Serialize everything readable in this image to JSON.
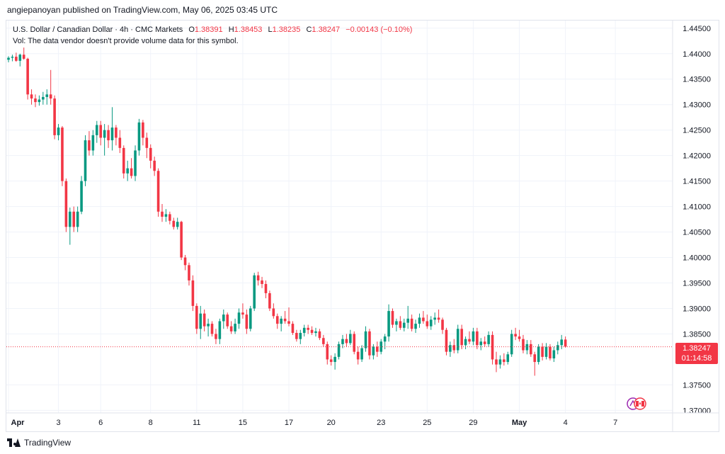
{
  "header": {
    "published_by": "angiepanoyan published on TradingView.com, May 06, 2025 03:45 UTC"
  },
  "legend": {
    "symbol": "U.S. Dollar / Canadian Dollar · 4h · CMC Markets",
    "open_label": "O",
    "open": "1.38391",
    "high_label": "H",
    "high": "1.38453",
    "low_label": "L",
    "low": "1.38235",
    "close_label": "C",
    "close": "1.38247",
    "change": "−0.00143 (−0.10%)",
    "volume_note": "Vol: The data vendor doesn't provide volume data for this symbol."
  },
  "price_tag": {
    "price": "1.38247",
    "countdown": "01:14:58"
  },
  "footer": {
    "brand": "TradingView"
  },
  "colors": {
    "up": "#089981",
    "down": "#f23645",
    "grid": "#f0f3fa",
    "text": "#131722",
    "current_line": "#f23645"
  },
  "chart_data": {
    "type": "candlestick",
    "ylim": [
      1.3695,
      1.4465
    ],
    "y_ticks": [
      "1.44500",
      "1.44000",
      "1.43500",
      "1.43000",
      "1.42500",
      "1.42000",
      "1.41500",
      "1.41000",
      "1.40500",
      "1.40000",
      "1.39500",
      "1.39000",
      "1.38500",
      "1.38247",
      "1.37500",
      "1.37000"
    ],
    "y_tick_values": [
      1.445,
      1.44,
      1.435,
      1.43,
      1.425,
      1.42,
      1.415,
      1.41,
      1.405,
      1.4,
      1.395,
      1.39,
      1.385,
      1.38247,
      1.375,
      1.37
    ],
    "x_ticks": [
      {
        "label": "Apr",
        "index": 0,
        "bold": true
      },
      {
        "label": "3",
        "index": 13
      },
      {
        "label": "6",
        "index": 24
      },
      {
        "label": "8",
        "index": 37
      },
      {
        "label": "11",
        "index": 49
      },
      {
        "label": "15",
        "index": 61
      },
      {
        "label": "17",
        "index": 73
      },
      {
        "label": "20",
        "index": 84
      },
      {
        "label": "23",
        "index": 97
      },
      {
        "label": "25",
        "index": 109
      },
      {
        "label": "29",
        "index": 121
      },
      {
        "label": "May",
        "index": 133,
        "bold": true
      },
      {
        "label": "4",
        "index": 145
      },
      {
        "label": "7",
        "index": 158
      }
    ],
    "current_price": 1.38247,
    "candles": [
      [
        1.4388,
        1.4395,
        1.4383,
        1.4392
      ],
      [
        1.4392,
        1.4398,
        1.4385,
        1.4394
      ],
      [
        1.4394,
        1.4402,
        1.4384,
        1.4386
      ],
      [
        1.4386,
        1.44,
        1.4375,
        1.4398
      ],
      [
        1.4398,
        1.4412,
        1.4388,
        1.439
      ],
      [
        1.439,
        1.4392,
        1.431,
        1.432
      ],
      [
        1.432,
        1.433,
        1.43,
        1.4312
      ],
      [
        1.4312,
        1.432,
        1.4295,
        1.4305
      ],
      [
        1.4305,
        1.4318,
        1.4298,
        1.431
      ],
      [
        1.431,
        1.4325,
        1.43,
        1.4315
      ],
      [
        1.4315,
        1.433,
        1.43,
        1.432
      ],
      [
        1.432,
        1.4368,
        1.43,
        1.4312
      ],
      [
        1.4312,
        1.4318,
        1.4232,
        1.424
      ],
      [
        1.424,
        1.4262,
        1.423,
        1.4255
      ],
      [
        1.4255,
        1.4258,
        1.414,
        1.415
      ],
      [
        1.415,
        1.4155,
        1.405,
        1.406
      ],
      [
        1.406,
        1.4098,
        1.4025,
        1.409
      ],
      [
        1.409,
        1.41,
        1.405,
        1.406
      ],
      [
        1.406,
        1.41,
        1.405,
        1.409
      ],
      [
        1.409,
        1.416,
        1.4085,
        1.415
      ],
      [
        1.415,
        1.424,
        1.414,
        1.423
      ],
      [
        1.423,
        1.4248,
        1.42,
        1.421
      ],
      [
        1.421,
        1.425,
        1.42,
        1.424
      ],
      [
        1.424,
        1.4268,
        1.4225,
        1.426
      ],
      [
        1.426,
        1.4268,
        1.422,
        1.4235
      ],
      [
        1.4235,
        1.4262,
        1.42,
        1.425
      ],
      [
        1.425,
        1.426,
        1.4215,
        1.423
      ],
      [
        1.423,
        1.4295,
        1.421,
        1.4255
      ],
      [
        1.4255,
        1.426,
        1.422,
        1.4235
      ],
      [
        1.4235,
        1.425,
        1.4205,
        1.4215
      ],
      [
        1.4215,
        1.422,
        1.4155,
        1.4165
      ],
      [
        1.4165,
        1.419,
        1.415,
        1.4175
      ],
      [
        1.4175,
        1.4195,
        1.4155,
        1.416
      ],
      [
        1.416,
        1.422,
        1.415,
        1.421
      ],
      [
        1.421,
        1.4272,
        1.42,
        1.4265
      ],
      [
        1.4265,
        1.427,
        1.422,
        1.4235
      ],
      [
        1.4235,
        1.4245,
        1.4195,
        1.4215
      ],
      [
        1.4215,
        1.4222,
        1.4175,
        1.419
      ],
      [
        1.419,
        1.4198,
        1.416,
        1.417
      ],
      [
        1.417,
        1.4175,
        1.408,
        1.409
      ],
      [
        1.409,
        1.4105,
        1.407,
        1.408
      ],
      [
        1.408,
        1.4095,
        1.407,
        1.4085
      ],
      [
        1.4085,
        1.409,
        1.4065,
        1.4072
      ],
      [
        1.4072,
        1.4078,
        1.4055,
        1.406
      ],
      [
        1.406,
        1.4078,
        1.4055,
        1.407
      ],
      [
        1.407,
        1.4072,
        1.3995,
        1.4
      ],
      [
        1.4,
        1.4005,
        1.3975,
        1.3985
      ],
      [
        1.3985,
        1.399,
        1.3945,
        1.3955
      ],
      [
        1.3955,
        1.3965,
        1.3895,
        1.3905
      ],
      [
        1.3905,
        1.391,
        1.385,
        1.386
      ],
      [
        1.386,
        1.3905,
        1.384,
        1.389
      ],
      [
        1.389,
        1.3898,
        1.3855,
        1.3865
      ],
      [
        1.3865,
        1.388,
        1.3845,
        1.387
      ],
      [
        1.387,
        1.3875,
        1.3845,
        1.385
      ],
      [
        1.385,
        1.386,
        1.383,
        1.384
      ],
      [
        1.384,
        1.388,
        1.383,
        1.3875
      ],
      [
        1.3875,
        1.3898,
        1.386,
        1.3888
      ],
      [
        1.3888,
        1.3892,
        1.386,
        1.3865
      ],
      [
        1.3865,
        1.3875,
        1.385,
        1.3855
      ],
      [
        1.3855,
        1.388,
        1.385,
        1.387
      ],
      [
        1.387,
        1.39,
        1.386,
        1.3892
      ],
      [
        1.3892,
        1.391,
        1.388,
        1.3888
      ],
      [
        1.3888,
        1.3898,
        1.385,
        1.386
      ],
      [
        1.386,
        1.3905,
        1.3855,
        1.39
      ],
      [
        1.39,
        1.397,
        1.3895,
        1.3965
      ],
      [
        1.3965,
        1.3972,
        1.3945,
        1.3955
      ],
      [
        1.3955,
        1.3962,
        1.394,
        1.3948
      ],
      [
        1.3948,
        1.3955,
        1.392,
        1.393
      ],
      [
        1.393,
        1.3935,
        1.3895,
        1.39
      ],
      [
        1.39,
        1.391,
        1.388,
        1.3885
      ],
      [
        1.3885,
        1.389,
        1.386,
        1.387
      ],
      [
        1.387,
        1.3885,
        1.3855,
        1.388
      ],
      [
        1.388,
        1.3895,
        1.387,
        1.3875
      ],
      [
        1.3875,
        1.3902,
        1.3865,
        1.387
      ],
      [
        1.387,
        1.3875,
        1.3848,
        1.3852
      ],
      [
        1.3852,
        1.3858,
        1.3835,
        1.384
      ],
      [
        1.384,
        1.3858,
        1.383,
        1.3852
      ],
      [
        1.3852,
        1.3868,
        1.3845,
        1.3862
      ],
      [
        1.3862,
        1.3868,
        1.385,
        1.3858
      ],
      [
        1.3858,
        1.3865,
        1.3848,
        1.3852
      ],
      [
        1.3852,
        1.3862,
        1.3845,
        1.3855
      ],
      [
        1.3855,
        1.386,
        1.3838,
        1.3842
      ],
      [
        1.3842,
        1.3848,
        1.3825,
        1.383
      ],
      [
        1.383,
        1.3835,
        1.379,
        1.38
      ],
      [
        1.38,
        1.3808,
        1.3788,
        1.3795
      ],
      [
        1.3795,
        1.3812,
        1.378,
        1.3805
      ],
      [
        1.3805,
        1.3835,
        1.38,
        1.383
      ],
      [
        1.383,
        1.3848,
        1.3822,
        1.384
      ],
      [
        1.384,
        1.385,
        1.3825,
        1.3832
      ],
      [
        1.3832,
        1.3858,
        1.3828,
        1.385
      ],
      [
        1.385,
        1.3855,
        1.381,
        1.3815
      ],
      [
        1.3815,
        1.3825,
        1.379,
        1.38
      ],
      [
        1.38,
        1.3828,
        1.3795,
        1.3822
      ],
      [
        1.3822,
        1.3865,
        1.3815,
        1.3855
      ],
      [
        1.3855,
        1.386,
        1.38,
        1.3808
      ],
      [
        1.3808,
        1.383,
        1.38,
        1.3825
      ],
      [
        1.3825,
        1.3835,
        1.3805,
        1.3815
      ],
      [
        1.3815,
        1.384,
        1.381,
        1.3835
      ],
      [
        1.3835,
        1.385,
        1.382,
        1.3845
      ],
      [
        1.3845,
        1.3908,
        1.3835,
        1.3895
      ],
      [
        1.3895,
        1.39,
        1.3862,
        1.3868
      ],
      [
        1.3868,
        1.388,
        1.3855,
        1.3875
      ],
      [
        1.3875,
        1.3885,
        1.3858,
        1.3862
      ],
      [
        1.3862,
        1.388,
        1.3855,
        1.3872
      ],
      [
        1.3872,
        1.3905,
        1.386,
        1.388
      ],
      [
        1.388,
        1.3888,
        1.3855,
        1.386
      ],
      [
        1.386,
        1.3878,
        1.3852,
        1.387
      ],
      [
        1.387,
        1.389,
        1.3862,
        1.3882
      ],
      [
        1.3882,
        1.3895,
        1.387,
        1.3875
      ],
      [
        1.3875,
        1.3888,
        1.386,
        1.3865
      ],
      [
        1.3865,
        1.3885,
        1.3858,
        1.3878
      ],
      [
        1.3878,
        1.3892,
        1.3868,
        1.3882
      ],
      [
        1.3882,
        1.3898,
        1.3872,
        1.3878
      ],
      [
        1.3878,
        1.3882,
        1.385,
        1.3858
      ],
      [
        1.3858,
        1.3862,
        1.3808,
        1.3815
      ],
      [
        1.3815,
        1.3835,
        1.3805,
        1.3828
      ],
      [
        1.3828,
        1.384,
        1.3812,
        1.3818
      ],
      [
        1.3818,
        1.3868,
        1.3812,
        1.386
      ],
      [
        1.386,
        1.3868,
        1.382,
        1.3828
      ],
      [
        1.3828,
        1.3845,
        1.382,
        1.384
      ],
      [
        1.384,
        1.3855,
        1.383,
        1.3835
      ],
      [
        1.3835,
        1.3862,
        1.3828,
        1.3855
      ],
      [
        1.3855,
        1.3862,
        1.382,
        1.3828
      ],
      [
        1.3828,
        1.3842,
        1.3818,
        1.3835
      ],
      [
        1.3835,
        1.3845,
        1.3825,
        1.383
      ],
      [
        1.383,
        1.3855,
        1.3825,
        1.3848
      ],
      [
        1.3848,
        1.3855,
        1.379,
        1.38
      ],
      [
        1.38,
        1.3815,
        1.3775,
        1.379
      ],
      [
        1.379,
        1.3808,
        1.3782,
        1.38
      ],
      [
        1.38,
        1.3812,
        1.3788,
        1.3795
      ],
      [
        1.3795,
        1.3815,
        1.379,
        1.381
      ],
      [
        1.381,
        1.3858,
        1.3805,
        1.385
      ],
      [
        1.385,
        1.3862,
        1.3838,
        1.3845
      ],
      [
        1.3845,
        1.3858,
        1.3835,
        1.384
      ],
      [
        1.384,
        1.3848,
        1.3812,
        1.3818
      ],
      [
        1.3818,
        1.3838,
        1.381,
        1.383
      ],
      [
        1.383,
        1.3838,
        1.3805,
        1.381
      ],
      [
        1.381,
        1.3815,
        1.3768,
        1.3795
      ],
      [
        1.3795,
        1.383,
        1.379,
        1.3825
      ],
      [
        1.3825,
        1.3832,
        1.3798,
        1.3805
      ],
      [
        1.3805,
        1.3832,
        1.38,
        1.3825
      ],
      [
        1.3825,
        1.383,
        1.3798,
        1.3802
      ],
      [
        1.3802,
        1.3825,
        1.3795,
        1.3818
      ],
      [
        1.3818,
        1.3835,
        1.381,
        1.3828
      ],
      [
        1.3828,
        1.3848,
        1.382,
        1.3839
      ],
      [
        1.3839,
        1.3845,
        1.3823,
        1.3825
      ]
    ]
  }
}
